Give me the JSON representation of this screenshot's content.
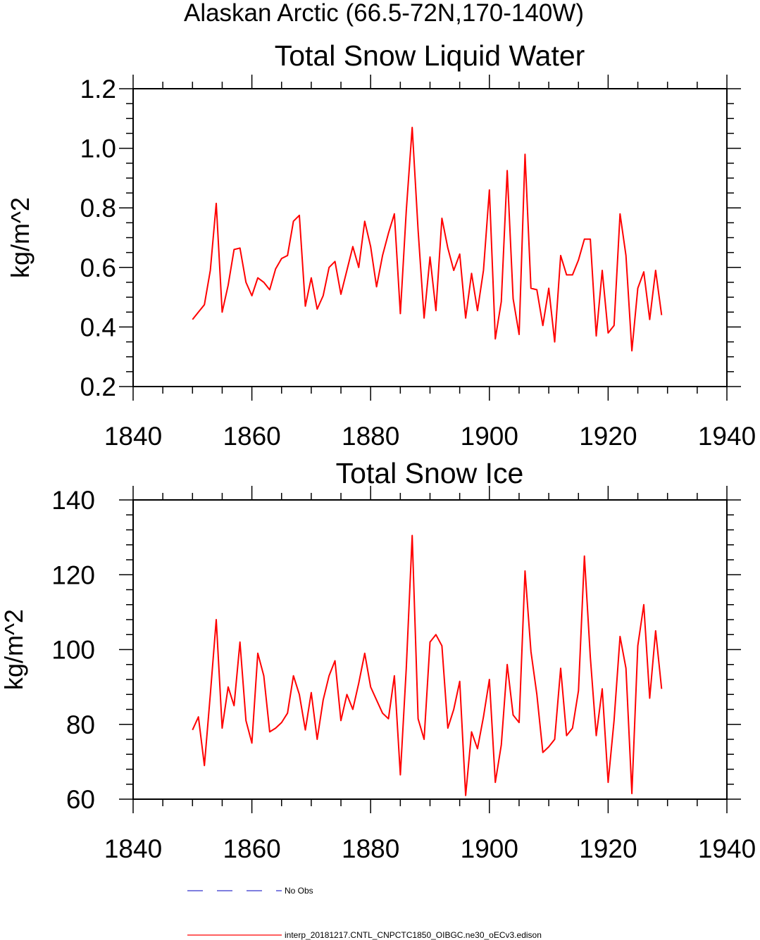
{
  "page": {
    "suptitle": "Alaskan Arctic (66.5-72N,170-140W)"
  },
  "legend": {
    "items": [
      {
        "label": "No Obs",
        "color": "#3333cc",
        "style": "dashed"
      },
      {
        "label": "interp_20181217.CNTL_CNPCTC1850_OIBGC.ne30_oECv3.edison",
        "color": "#ff0000",
        "style": "solid"
      }
    ]
  },
  "chart_data": [
    {
      "type": "line",
      "title": "Total Snow Liquid Water",
      "xlabel": "",
      "ylabel": "kg/m^2",
      "xlim": [
        1840,
        1940
      ],
      "ylim": [
        0.2,
        1.2
      ],
      "xticks": [
        1840,
        1860,
        1880,
        1900,
        1920,
        1940
      ],
      "xtick_labels": [
        "1840",
        "1860",
        "1880",
        "1900",
        "1920",
        "1940"
      ],
      "yticks": [
        0.2,
        0.4,
        0.6,
        0.8,
        1.0,
        1.2
      ],
      "ytick_labels": [
        "0.2",
        "0.4",
        "0.6",
        "0.8",
        "1.0",
        "1.2"
      ],
      "grid": false,
      "x": [
        1850,
        1851,
        1852,
        1853,
        1854,
        1855,
        1856,
        1857,
        1858,
        1859,
        1860,
        1861,
        1862,
        1863,
        1864,
        1865,
        1866,
        1867,
        1868,
        1869,
        1870,
        1871,
        1872,
        1873,
        1874,
        1875,
        1876,
        1877,
        1878,
        1879,
        1880,
        1881,
        1882,
        1883,
        1884,
        1885,
        1886,
        1887,
        1888,
        1889,
        1890,
        1891,
        1892,
        1893,
        1894,
        1895,
        1896,
        1897,
        1898,
        1899,
        1900,
        1901,
        1902,
        1903,
        1904,
        1905,
        1906,
        1907,
        1908,
        1909,
        1910,
        1911,
        1912,
        1913,
        1914,
        1915,
        1916,
        1917,
        1918,
        1919,
        1920,
        1921,
        1922,
        1923,
        1924,
        1925,
        1926,
        1927,
        1928,
        1929
      ],
      "series": [
        {
          "color": "#ff0000",
          "values": [
            0.425,
            0.45,
            0.475,
            0.59,
            0.815,
            0.45,
            0.54,
            0.66,
            0.665,
            0.55,
            0.505,
            0.565,
            0.55,
            0.525,
            0.595,
            0.63,
            0.64,
            0.755,
            0.775,
            0.47,
            0.565,
            0.46,
            0.505,
            0.6,
            0.62,
            0.51,
            0.59,
            0.67,
            0.6,
            0.755,
            0.67,
            0.535,
            0.64,
            0.715,
            0.78,
            0.445,
            0.79,
            1.07,
            0.725,
            0.43,
            0.635,
            0.455,
            0.765,
            0.665,
            0.59,
            0.645,
            0.43,
            0.58,
            0.455,
            0.59,
            0.86,
            0.36,
            0.485,
            0.925,
            0.495,
            0.375,
            0.98,
            0.53,
            0.525,
            0.405,
            0.53,
            0.35,
            0.64,
            0.575,
            0.575,
            0.625,
            0.695,
            0.695,
            0.37,
            0.59,
            0.38,
            0.405,
            0.78,
            0.64,
            0.32,
            0.53,
            0.585,
            0.425,
            0.59,
            0.44
          ]
        }
      ]
    },
    {
      "type": "line",
      "title": "Total Snow Ice",
      "xlabel": "",
      "ylabel": "kg/m^2",
      "xlim": [
        1840,
        1940
      ],
      "ylim": [
        60,
        140
      ],
      "xticks": [
        1840,
        1860,
        1880,
        1900,
        1920,
        1940
      ],
      "xtick_labels": [
        "1840",
        "1860",
        "1880",
        "1900",
        "1920",
        "1940"
      ],
      "yticks": [
        60,
        80,
        100,
        120,
        140
      ],
      "ytick_labels": [
        "60",
        "80",
        "100",
        "120",
        "140"
      ],
      "grid": false,
      "x": [
        1850,
        1851,
        1852,
        1853,
        1854,
        1855,
        1856,
        1857,
        1858,
        1859,
        1860,
        1861,
        1862,
        1863,
        1864,
        1865,
        1866,
        1867,
        1868,
        1869,
        1870,
        1871,
        1872,
        1873,
        1874,
        1875,
        1876,
        1877,
        1878,
        1879,
        1880,
        1881,
        1882,
        1883,
        1884,
        1885,
        1886,
        1887,
        1888,
        1889,
        1890,
        1891,
        1892,
        1893,
        1894,
        1895,
        1896,
        1897,
        1898,
        1899,
        1900,
        1901,
        1902,
        1903,
        1904,
        1905,
        1906,
        1907,
        1908,
        1909,
        1910,
        1911,
        1912,
        1913,
        1914,
        1915,
        1916,
        1917,
        1918,
        1919,
        1920,
        1921,
        1922,
        1923,
        1924,
        1925,
        1926,
        1927,
        1928,
        1929
      ],
      "series": [
        {
          "color": "#ff0000",
          "values": [
            78.5,
            82,
            69,
            88,
            108,
            79,
            90,
            85,
            102,
            81,
            75,
            99,
            93,
            78,
            79,
            80.5,
            83,
            93,
            88,
            78.5,
            88.5,
            76,
            86.5,
            93,
            97,
            81,
            88,
            84,
            91,
            99,
            90,
            86.5,
            83,
            81.5,
            93,
            66.5,
            95,
            130.5,
            81.5,
            76,
            102,
            104,
            101,
            79,
            84,
            91.5,
            61,
            78,
            73.5,
            82,
            92,
            64.5,
            74.5,
            96,
            82.5,
            80.5,
            121,
            99.5,
            88,
            72.5,
            74,
            76,
            95,
            77,
            79,
            89,
            125,
            98,
            77,
            89.5,
            64.5,
            81,
            103.5,
            95,
            61.5,
            101,
            112,
            87,
            105,
            89.5
          ]
        }
      ]
    }
  ]
}
